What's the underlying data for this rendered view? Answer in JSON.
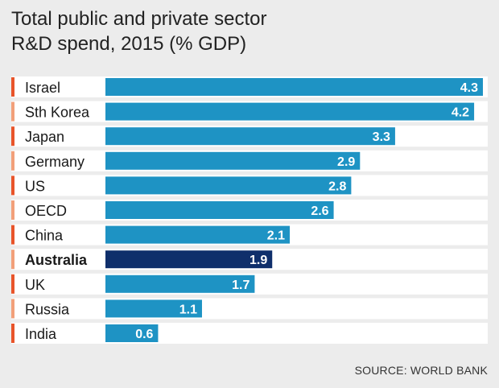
{
  "title_line1": "Total public and private sector",
  "title_line2": "R&D spend, 2015 (% GDP)",
  "source": "SOURCE: WORLD BANK",
  "colors": {
    "bar": "#1e93c4",
    "highlight": "#0f2f6b",
    "accent_dark": "#e8542a",
    "accent_light": "#f2a07a",
    "row_bg": "#ffffff",
    "label_text_inside": "#ffffff",
    "label_text_outside": "#1a1a1a"
  },
  "chart_data": {
    "type": "bar",
    "orientation": "horizontal",
    "title": "Total public and private sector R&D spend, 2015 (% GDP)",
    "categories": [
      "Israel",
      "Sth Korea",
      "Japan",
      "Germany",
      "US",
      "OECD",
      "China",
      "Australia",
      "UK",
      "Russia",
      "India"
    ],
    "values": [
      4.3,
      4.2,
      3.3,
      2.9,
      2.8,
      2.6,
      2.1,
      1.9,
      1.7,
      1.1,
      0.6
    ],
    "value_labels": [
      "4.3",
      "4.2",
      "3.3",
      "2.9",
      "2.8",
      "2.6",
      "2.1",
      "1.9",
      "1.7",
      "1.1",
      "0.6"
    ],
    "highlight": "Australia",
    "accent_shades": [
      "dark",
      "light",
      "dark",
      "light",
      "dark",
      "light",
      "dark",
      "light",
      "dark",
      "light",
      "dark"
    ],
    "xlim": [
      0,
      4.3
    ],
    "grid": false,
    "source": "SOURCE: WORLD BANK"
  }
}
